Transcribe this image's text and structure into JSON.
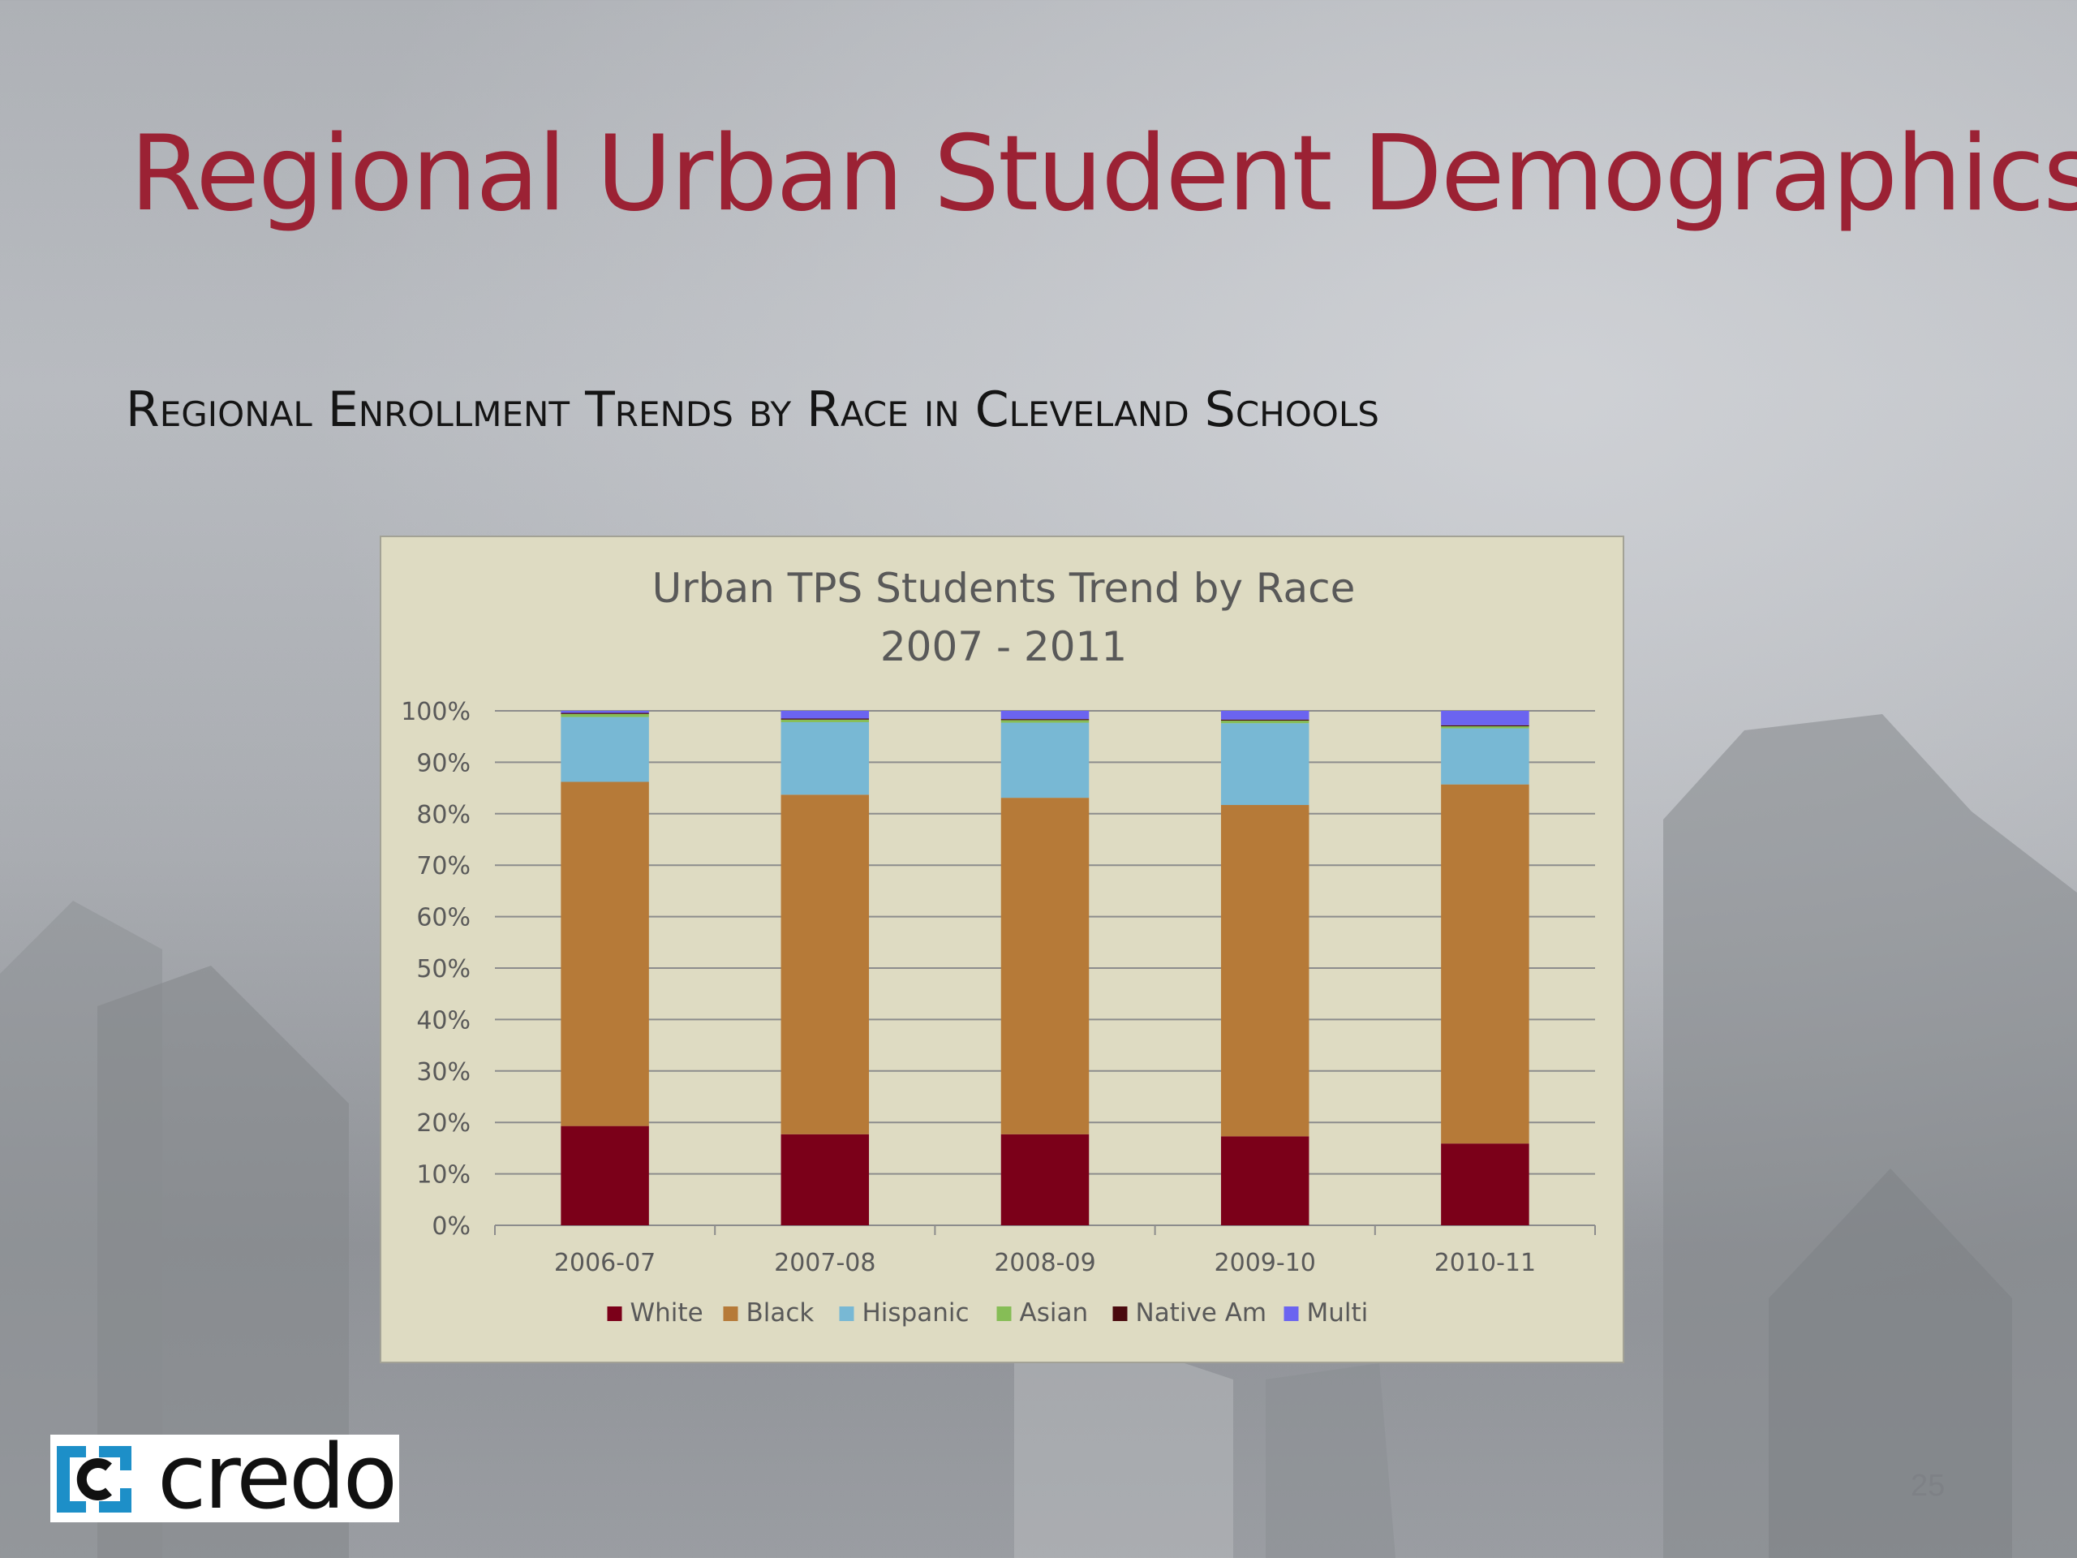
{
  "slide": {
    "title": "Regional Urban Student Demographics",
    "subtitle": "Regional Enrollment Trends by Race in Cleveland Schools",
    "page_number": "25",
    "logo_text": "credo"
  },
  "colors": {
    "title": "#9b2234",
    "chart_background": "#dedbc2",
    "white": "#7b0019",
    "black": "#b67a38",
    "hispanic": "#78b8d4",
    "asian": "#86bd56",
    "native_am": "#4a0a0e",
    "multi": "#6b64f0"
  },
  "chart_data": {
    "type": "bar",
    "stacked": true,
    "title_lines": [
      "Urban TPS Students Trend by Race",
      "2007 - 2011"
    ],
    "categories": [
      "2006-07",
      "2007-08",
      "2008-09",
      "2009-10",
      "2010-11"
    ],
    "y_ticks": [
      "0%",
      "10%",
      "20%",
      "30%",
      "40%",
      "50%",
      "60%",
      "70%",
      "80%",
      "90%",
      "100%"
    ],
    "ylim": [
      0,
      100
    ],
    "y_unit": "%",
    "grid": true,
    "legend_position": "bottom",
    "series": [
      {
        "name": "White",
        "color": "#7b0019",
        "values": [
          19.3,
          17.7,
          17.7,
          17.3,
          15.9
        ]
      },
      {
        "name": "Black",
        "color": "#b67a38",
        "values": [
          66.9,
          66.0,
          65.4,
          64.4,
          69.8
        ]
      },
      {
        "name": "Hispanic",
        "color": "#78b8d4",
        "values": [
          12.6,
          14.1,
          14.6,
          15.9,
          10.9
        ]
      },
      {
        "name": "Asian",
        "color": "#86bd56",
        "values": [
          0.6,
          0.5,
          0.5,
          0.5,
          0.4
        ]
      },
      {
        "name": "Native Am",
        "color": "#4a0a0e",
        "values": [
          0.2,
          0.2,
          0.2,
          0.2,
          0.2
        ]
      },
      {
        "name": "Multi",
        "color": "#6b64f0",
        "values": [
          0.4,
          1.5,
          1.6,
          1.7,
          2.8
        ]
      }
    ]
  }
}
